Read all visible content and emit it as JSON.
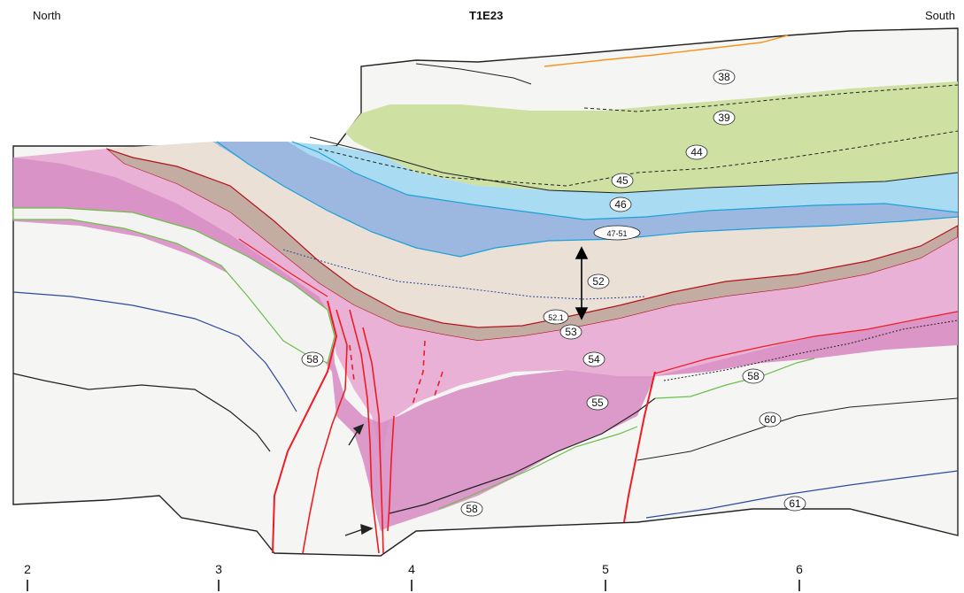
{
  "header": {
    "left": "North",
    "title": "T1E23",
    "right": "South"
  },
  "colors": {
    "unit_38_39": "#f5f6f4",
    "unit_44": "#cfe0a3",
    "unit_46": "#a9dcf2",
    "unit_47_51": "#9cb7e0",
    "unit_52": "#eae0d6",
    "unit_53": "#c3ada3",
    "unit_54": "#e9b1d5",
    "unit_55": "#d890c4",
    "unit_58": "#f3f4f2",
    "fault": "#ee1c24",
    "contact_green": "#6bbf4a",
    "contact_blue": "#2b4a9c",
    "contact_cyan": "#1aa1d8",
    "contact_orange": "#f7941d",
    "contact_red_dark": "#b5121b"
  },
  "units": [
    {
      "label": "38"
    },
    {
      "label": "39"
    },
    {
      "label": "44"
    },
    {
      "label": "45"
    },
    {
      "label": "46"
    },
    {
      "label": "47-51"
    },
    {
      "label": "52"
    },
    {
      "label": "52.1"
    },
    {
      "label": "53"
    },
    {
      "label": "54"
    },
    {
      "label": "55"
    },
    {
      "label": "58"
    },
    {
      "label": "58"
    },
    {
      "label": "58"
    },
    {
      "label": "60"
    },
    {
      "label": "61"
    }
  ],
  "scale": {
    "ticks": [
      "2",
      "3",
      "4",
      "5",
      "6"
    ]
  }
}
